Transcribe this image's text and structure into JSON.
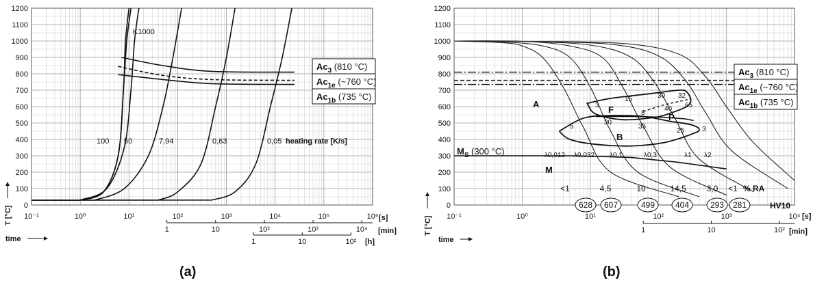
{
  "chart_data": [
    {
      "panel_label": "(a)",
      "type": "line",
      "ylabel": "T [°C]",
      "xlabel": "time",
      "x_unit": "[s]",
      "x_scale": "log",
      "xlim": [
        0.1,
        1000000
      ],
      "ylim": [
        0,
        1200
      ],
      "y_ticks": [
        "0",
        "100",
        "200",
        "300",
        "400",
        "500",
        "600",
        "700",
        "800",
        "900",
        "1000",
        "1100",
        "1200"
      ],
      "x_ticks": [
        "10⁻¹",
        "10⁰",
        "10¹",
        "10²",
        "10³",
        "10⁴",
        "10⁵",
        "10⁶"
      ],
      "min_axis": {
        "label": "[min]",
        "ticks": [
          "1",
          "10",
          "10²",
          "10³",
          "10⁴"
        ]
      },
      "h_axis": {
        "label": "[h]",
        "ticks": [
          "1",
          "10",
          "10²"
        ]
      },
      "grid": true,
      "heating_rate_label": "heating rate [K/s]",
      "k1000_label": "K1000",
      "series": [
        {
          "name": "K1000",
          "x": [
            1,
            3,
            6,
            7.7,
            8.5,
            10
          ],
          "y": [
            30,
            80,
            300,
            700,
            1000,
            1200
          ]
        },
        {
          "name": "100",
          "x": [
            1,
            3,
            6,
            7.7,
            9,
            11
          ],
          "y": [
            30,
            80,
            300,
            700,
            1000,
            1200
          ]
        },
        {
          "name": "50",
          "x": [
            1,
            3.5,
            8,
            11,
            13,
            16
          ],
          "y": [
            30,
            100,
            350,
            700,
            1000,
            1200
          ]
        },
        {
          "name": "7,94",
          "x": [
            2,
            8,
            25,
            50,
            80,
            120
          ],
          "y": [
            30,
            100,
            300,
            600,
            900,
            1200
          ]
        },
        {
          "name": "0,63",
          "x": [
            40,
            100,
            300,
            600,
            1000,
            1500
          ],
          "y": [
            30,
            80,
            250,
            600,
            900,
            1200
          ]
        },
        {
          "name": "0,05",
          "x": [
            500,
            1500,
            4000,
            8000,
            14000,
            22000
          ],
          "y": [
            30,
            80,
            250,
            600,
            900,
            1200
          ]
        }
      ],
      "transformation_lines": [
        {
          "name": "Ac3",
          "x": [
            7,
            50,
            500,
            25000
          ],
          "y": [
            900,
            850,
            815,
            810
          ]
        },
        {
          "name": "Ac1e",
          "x": [
            6,
            50,
            500,
            25000
          ],
          "y": [
            845,
            790,
            765,
            760
          ]
        },
        {
          "name": "Ac1b",
          "x": [
            6,
            50,
            500,
            25000
          ],
          "y": [
            795,
            765,
            740,
            735
          ]
        }
      ],
      "legend_boxes": [
        {
          "name": "Ac3",
          "label": "Ac",
          "sub": "3",
          "temp": "(810 °C)"
        },
        {
          "name": "Ac1e",
          "label": "Ac",
          "sub": "1e",
          "temp": "(~760 °C)"
        },
        {
          "name": "Ac1b",
          "label": "Ac",
          "sub": "1b",
          "temp": "(735 °C)"
        }
      ]
    },
    {
      "panel_label": "(b)",
      "type": "line",
      "ylabel": "T [°C]",
      "xlabel": "time",
      "x_unit": "[s]",
      "x_scale": "log",
      "xlim": [
        0.1,
        10000
      ],
      "ylim": [
        0,
        1200
      ],
      "y_ticks": [
        "0",
        "100",
        "200",
        "300",
        "400",
        "500",
        "600",
        "700",
        "800",
        "900",
        "1000",
        "1100",
        "1200"
      ],
      "x_ticks": [
        "10⁻¹",
        "10⁰",
        "10¹",
        "10²",
        "10³",
        "10⁴"
      ],
      "min_axis": {
        "label": "[min]",
        "ticks": [
          "1",
          "10",
          "10²"
        ]
      },
      "grid": true,
      "ms_label": "M",
      "ms_sub": "S",
      "ms_temp": "(300 °C)",
      "ms_value": 300,
      "phase_labels": [
        "A",
        "F",
        "P",
        "B",
        "M"
      ],
      "region_numbers": [
        "3",
        "5",
        "15",
        "32",
        "65",
        "40",
        "8",
        "30",
        "35",
        "25",
        "3",
        "30"
      ],
      "cooling_curves": [
        {
          "name": "λ0,012",
          "x": [
            0.1,
            0.5,
            1,
            2,
            4,
            8,
            20,
            200
          ],
          "y": [
            1000,
            990,
            970,
            900,
            720,
            470,
            200,
            50
          ]
        },
        {
          "name": "λ0,032",
          "x": [
            0.1,
            0.5,
            2,
            5,
            10,
            20,
            50,
            400
          ],
          "y": [
            1000,
            995,
            970,
            900,
            720,
            450,
            200,
            50
          ]
        },
        {
          "name": "λ0,1",
          "x": [
            0.1,
            1,
            5,
            15,
            30,
            60,
            150,
            1000
          ],
          "y": [
            1000,
            998,
            970,
            900,
            720,
            480,
            230,
            60
          ]
        },
        {
          "name": "λ0,3",
          "x": [
            0.1,
            1,
            10,
            40,
            90,
            180,
            400,
            2500
          ],
          "y": [
            1000,
            998,
            975,
            900,
            740,
            520,
            280,
            80
          ]
        },
        {
          "name": "λ1",
          "x": [
            0.1,
            1,
            20,
            100,
            250,
            500,
            1200,
            8000
          ],
          "y": [
            1000,
            998,
            980,
            910,
            760,
            560,
            330,
            100
          ]
        },
        {
          "name": "λ2",
          "x": [
            0.1,
            1,
            30,
            200,
            500,
            1000,
            2500,
            10000
          ],
          "y": [
            1000,
            998,
            985,
            920,
            780,
            600,
            380,
            150
          ]
        }
      ],
      "ra_values": [
        "<1",
        "4,5",
        "10",
        "14,5",
        "3,0",
        "<1"
      ],
      "ra_label": "% RA",
      "hardness_values": [
        628,
        607,
        499,
        404,
        293,
        281
      ],
      "hardness_label": "HV10",
      "legend_boxes": [
        {
          "name": "Ac3",
          "label": "Ac",
          "sub": "3",
          "temp": "(810 °C)"
        },
        {
          "name": "Ac1e",
          "label": "Ac",
          "sub": "1e",
          "temp": "(~760 °C)"
        },
        {
          "name": "Ac1b",
          "label": "Ac",
          "sub": "1b",
          "temp": "(735 °C)"
        }
      ]
    }
  ]
}
